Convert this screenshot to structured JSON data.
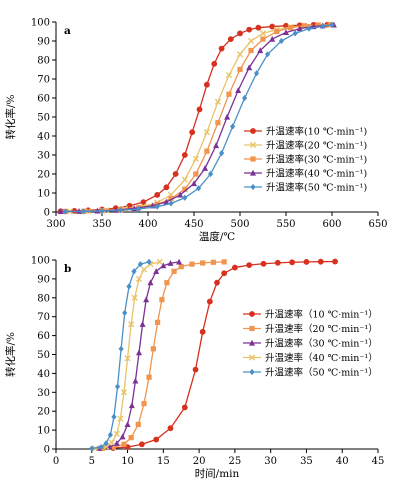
{
  "series_colors": [
    "#d7301f",
    "#f0944e",
    "#7b3294",
    "#e8c468",
    "#4a90c8"
  ],
  "series_markers": [
    "circle",
    "square",
    "triangle",
    "cross",
    "diamond"
  ],
  "chart_data": [
    {
      "type": "line",
      "panel_label": "a",
      "xlabel": "温度/℃",
      "ylabel": "转化率/%",
      "xlim": [
        300,
        650
      ],
      "ylim": [
        0,
        100
      ],
      "xticks": [
        300,
        350,
        400,
        450,
        500,
        550,
        600,
        650
      ],
      "yticks": [
        0,
        10,
        20,
        30,
        40,
        50,
        60,
        70,
        80,
        90,
        100
      ],
      "legend_position": "right",
      "series": [
        {
          "name": "升温速率(10 ℃·min⁻¹)",
          "color": "#d7301f",
          "marker": "circle",
          "x": [
            305,
            320,
            335,
            350,
            365,
            380,
            395,
            410,
            420,
            430,
            440,
            448,
            456,
            464,
            472,
            480,
            490,
            500,
            510,
            520,
            535,
            550,
            565,
            580,
            595
          ],
          "y": [
            0.4,
            0.6,
            0.9,
            1.3,
            2.0,
            3.3,
            5.2,
            9,
            13,
            20,
            30,
            42,
            54,
            67,
            78,
            86,
            91,
            94,
            96,
            97,
            97.6,
            98,
            98.3,
            98.5,
            98.6
          ]
        },
        {
          "name": "升温速率(20 ℃·min⁻¹)",
          "color": "#e8c468",
          "marker": "cross",
          "x": [
            315,
            335,
            355,
            375,
            395,
            410,
            425,
            440,
            452,
            464,
            476,
            488,
            500,
            512,
            525,
            540,
            555,
            570,
            585,
            598
          ],
          "y": [
            0.3,
            0.5,
            0.9,
            1.6,
            3.0,
            5,
            9,
            17,
            28,
            42,
            58,
            72,
            83,
            90,
            94,
            96,
            97.3,
            98,
            98.4,
            98.6
          ]
        },
        {
          "name": "升温速率(30 ℃·min⁻¹)",
          "color": "#f0944e",
          "marker": "square",
          "x": [
            310,
            330,
            350,
            370,
            390,
            410,
            425,
            440,
            452,
            464,
            476,
            488,
            500,
            512,
            525,
            540,
            555,
            570,
            585,
            598
          ],
          "y": [
            0.3,
            0.4,
            0.7,
            1.2,
            2.3,
            4,
            7,
            12,
            20,
            32,
            47,
            62,
            75,
            85,
            91,
            95,
            97,
            98,
            98.4,
            98.6
          ]
        },
        {
          "name": "升温速率(40 ℃·min⁻¹)",
          "color": "#7b3294",
          "marker": "triangle",
          "x": [
            305,
            325,
            345,
            365,
            385,
            405,
            420,
            435,
            450,
            462,
            474,
            486,
            498,
            510,
            522,
            535,
            550,
            565,
            580,
            590,
            602
          ],
          "y": [
            0.3,
            0.4,
            0.6,
            1.0,
            1.9,
            3.3,
            5.3,
            9,
            15,
            23,
            35,
            50,
            64,
            76,
            85,
            91,
            94.5,
            96.5,
            97.6,
            98.1,
            98.5
          ]
        },
        {
          "name": "升温速率(50 ℃·min⁻¹)",
          "color": "#4a90c8",
          "marker": "diamond",
          "x": [
            310,
            330,
            350,
            370,
            390,
            410,
            425,
            440,
            455,
            468,
            480,
            492,
            505,
            518,
            530,
            545,
            560,
            575,
            590,
            600
          ],
          "y": [
            0.2,
            0.3,
            0.5,
            0.9,
            1.6,
            2.8,
            4.5,
            7.5,
            12.5,
            20,
            31,
            45,
            60,
            73,
            83,
            90,
            94,
            96.5,
            97.8,
            98.4
          ]
        }
      ]
    },
    {
      "type": "line",
      "panel_label": "b",
      "xlabel": "时间/min",
      "ylabel": "转化率/%",
      "xlim": [
        0,
        45
      ],
      "ylim": [
        0,
        100
      ],
      "xticks": [
        0,
        5,
        10,
        15,
        20,
        25,
        30,
        35,
        40,
        45
      ],
      "yticks": [
        0,
        10,
        20,
        30,
        40,
        50,
        60,
        70,
        80,
        90,
        100
      ],
      "legend_position": "right",
      "series": [
        {
          "name": "升温速率（10 ℃·min⁻¹）",
          "color": "#d7301f",
          "marker": "circle",
          "x": [
            8,
            10,
            12,
            14,
            16,
            18,
            19.5,
            20.5,
            21.5,
            22.5,
            23.5,
            25,
            27,
            29,
            31,
            33,
            35,
            37,
            39
          ],
          "y": [
            0.5,
            1.0,
            2.5,
            5,
            11,
            22,
            42,
            62,
            78,
            88,
            93,
            96,
            97.3,
            98,
            98.5,
            98.8,
            99,
            99.1,
            99.2
          ]
        },
        {
          "name": "升温速率（20 ℃·min⁻¹）",
          "color": "#f0944e",
          "marker": "square",
          "x": [
            6.5,
            8,
            9.5,
            10.5,
            11.5,
            12.3,
            13,
            13.6,
            14.2,
            14.8,
            15.5,
            16.5,
            17.5,
            19,
            20.5,
            22,
            23.5
          ],
          "y": [
            0.3,
            0.8,
            2.5,
            6,
            13,
            24,
            38,
            53,
            67,
            79,
            88,
            94,
            96.5,
            97.8,
            98.4,
            98.8,
            99
          ]
        },
        {
          "name": "升温速率（30 ℃·min⁻¹）",
          "color": "#7b3294",
          "marker": "triangle",
          "x": [
            6,
            7.5,
            8.5,
            9.3,
            10,
            10.6,
            11.1,
            11.6,
            12.1,
            12.6,
            13.2,
            14,
            15,
            16,
            17.2
          ],
          "y": [
            0.3,
            1.0,
            3,
            6.5,
            13,
            23,
            36,
            51,
            66,
            79,
            88,
            94,
            97,
            98.3,
            99
          ]
        },
        {
          "name": "升温速率（40 ℃·min⁻¹）",
          "color": "#e8c468",
          "marker": "cross",
          "x": [
            5.5,
            7,
            7.8,
            8.5,
            9,
            9.5,
            10,
            10.5,
            11,
            11.6,
            12.3,
            13.2,
            14.5
          ],
          "y": [
            0.3,
            1.2,
            3.5,
            8,
            16,
            30,
            48,
            66,
            80,
            90,
            95,
            97.8,
            99
          ]
        },
        {
          "name": "升温速率（50 ℃·min⁻¹）",
          "color": "#4a90c8",
          "marker": "diamond",
          "x": [
            5,
            6.3,
            7,
            7.6,
            8.1,
            8.6,
            9.1,
            9.6,
            10.2,
            10.9,
            11.8,
            13
          ],
          "y": [
            0.3,
            1.0,
            3,
            7.5,
            17,
            33,
            53,
            72,
            86,
            94,
            97.8,
            99
          ]
        }
      ]
    }
  ]
}
